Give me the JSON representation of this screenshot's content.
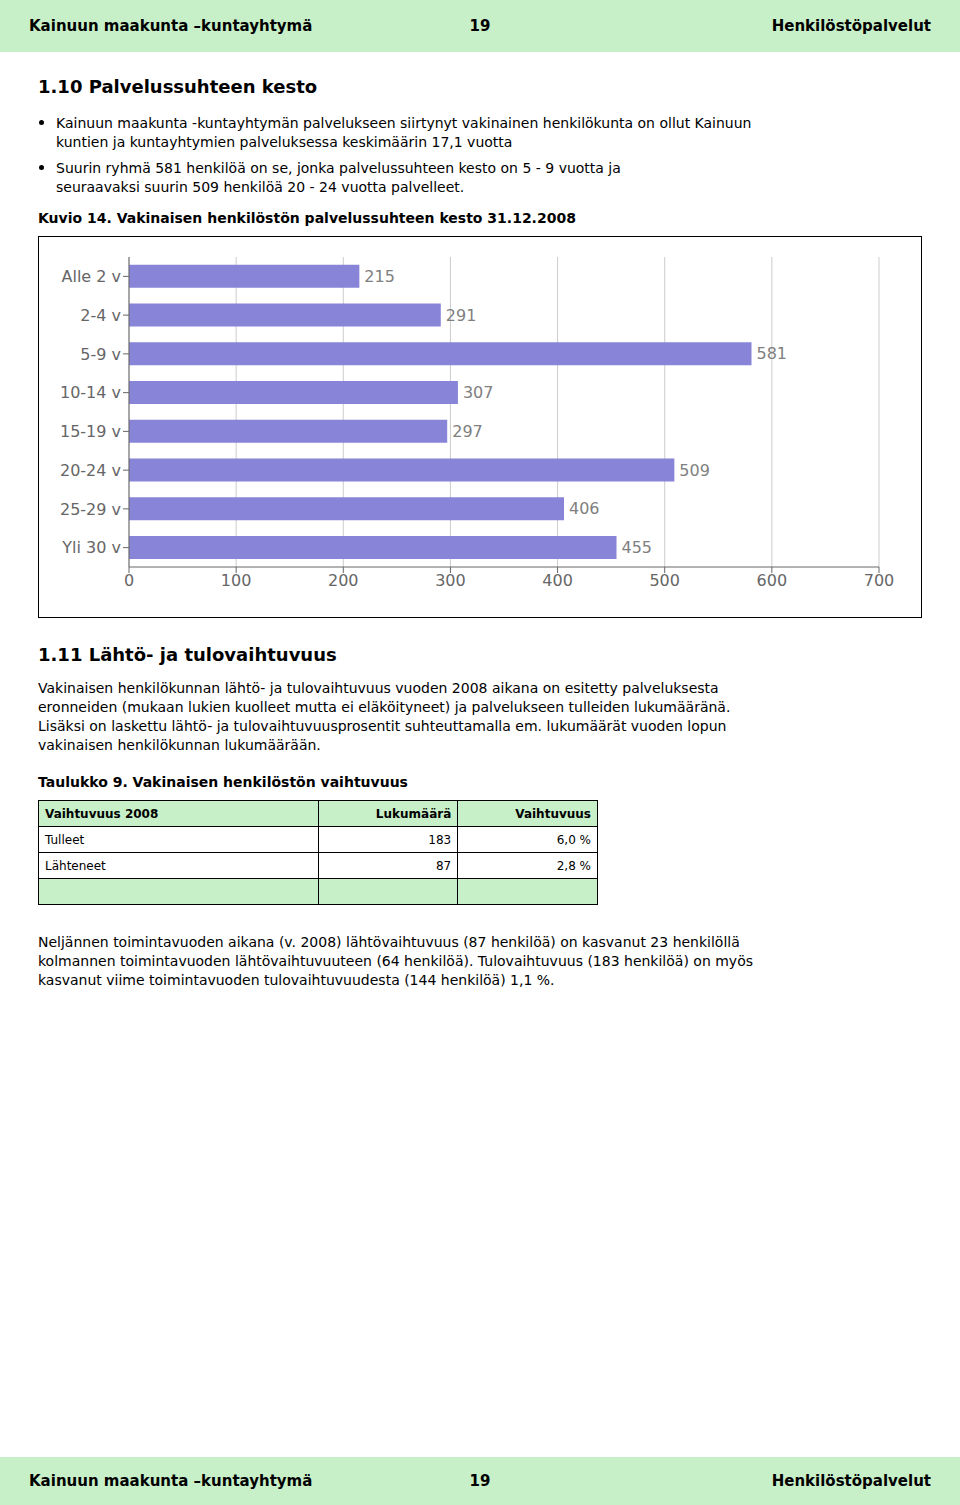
{
  "chart_data": {
    "type": "bar",
    "title": "Kuvio 14. Vakinaisen henkilöstön palvelussuhteen kesto 31.12.2008",
    "orientation": "horizontal",
    "categories": [
      "Alle 2 v",
      "2-4 v",
      "5-9 v",
      "10-14 v",
      "15-19 v",
      "20-24 v",
      "25-29 v",
      "Yli 30 v"
    ],
    "values": [
      215,
      291,
      581,
      307,
      297,
      509,
      406,
      455
    ],
    "xlim": [
      0,
      700
    ],
    "xticks": [
      0,
      100,
      200,
      300,
      400,
      500,
      600,
      700
    ],
    "grid": true,
    "data_labels": true,
    "color": "#8884d8"
  },
  "header": {
    "color": "#c8f0c8",
    "texts": [
      "Kainuun maakunta –kuntayhtymä",
      "19",
      "Henkilöstöpalvelut"
    ]
  },
  "footer": {
    "color": "#c8f0c8",
    "texts": [
      "Kainuun maakunta –kuntayhtymä",
      "19",
      "Henkilöstöpalvelut"
    ]
  },
  "section1": {
    "title": "1.10 Palvelussuhteen kesto",
    "bullets": [
      [
        "Kainuun maakunta -kuntayhtymän palvelukseen siirtynyt vakinainen henkilökunta on ollut Kainuun",
        "kuntien ja kuntayhtymien palveluksessa keskimäärin 17,1 vuotta"
      ],
      [
        "Suurin ryhmä 581 henkilöä on se, jonka palvelussuhteen kesto on 5 - 9 vuotta ja",
        "seuraavaksi suurin 509 henkilöä 20 - 24 vuotta palvelleet."
      ]
    ]
  },
  "section2": {
    "title": "1.11 Lähtö- ja tulovaihtuvuus",
    "lines": [
      "Vakinaisen henkilökunnan lähtö- ja tulovaihtuvuus vuoden 2008 aikana on esitetty palveluksesta",
      "eronneiden (mukaan lukien kuolleet mutta ei eläköityneet) ja palvelukseen tulleiden lukumääränä.",
      "Lisäksi on laskettu lähtö- ja tulovaihtuvuusprosentit suhteuttamalla em. lukumäärät vuoden lopun",
      "vakinaisen henkilökunnan lukumäärään."
    ]
  },
  "table": {
    "title": "Taulukko 9. Vakinaisen henkilöstön vaihtuvuus",
    "color": "#c8f0c8",
    "headers": [
      "Vaihtuvuus 2008",
      "Lukumäärä",
      "Vaihtuvuus"
    ],
    "rows": [
      [
        "Tulleet",
        "183",
        "6,0 %"
      ],
      [
        "Lähteneet",
        "87",
        "2,8 %"
      ]
    ]
  },
  "closing": [
    "Neljännen toimintavuoden aikana (v. 2008) lähtövaihtuvuus (87 henkilöä) on kasvanut 23 henkilöllä",
    "kolmannen toimintavuoden lähtövaihtuvuuteen (64 henkilöä). Tulovaihtuvuus (183 henkilöä) on myös",
    "kasvanut viime toimintavuoden tulovaihtuvuudesta (144 henkilöä) 1,1 %."
  ]
}
